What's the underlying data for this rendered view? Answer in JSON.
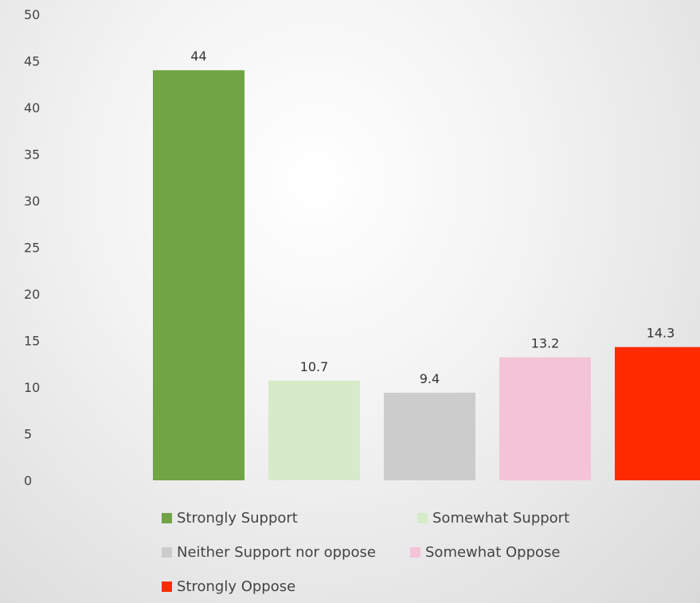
{
  "chart_data": {
    "type": "bar",
    "title": "",
    "xlabel": "",
    "ylabel": "",
    "ylim": [
      0,
      50
    ],
    "yticks": [
      0,
      5,
      10,
      15,
      20,
      25,
      30,
      35,
      40,
      45,
      50
    ],
    "grid": false,
    "legend_position": "bottom",
    "series": [
      {
        "name": "Strongly Support",
        "value": 44,
        "label": "44",
        "color": "#70a444"
      },
      {
        "name": "Somewhat Support",
        "value": 10.7,
        "label": "10.7",
        "color": "#d6ebc8"
      },
      {
        "name": "Neither Support nor oppose",
        "value": 9.4,
        "label": "9.4",
        "color": "#cccccc"
      },
      {
        "name": "Somewhat Oppose",
        "value": 13.2,
        "label": "13.2",
        "color": "#f3c3d8"
      },
      {
        "name": "Strongly Oppose",
        "value": 14.3,
        "label": "14.3",
        "color": "#ff2a00"
      }
    ]
  }
}
